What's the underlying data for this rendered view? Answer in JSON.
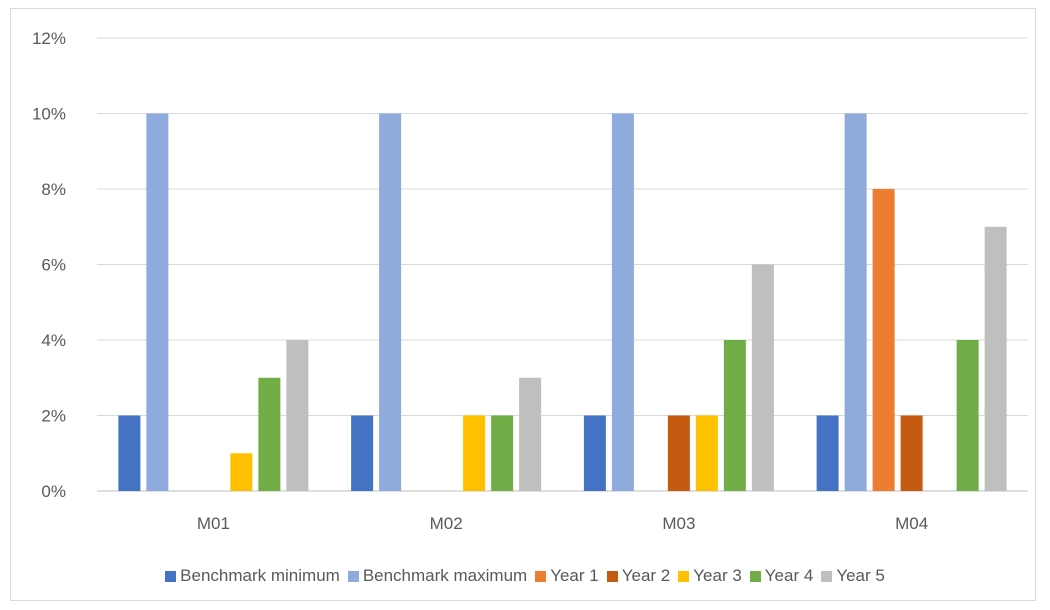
{
  "chart_data": {
    "type": "bar",
    "title": "",
    "xlabel": "",
    "ylabel": "",
    "categories": [
      "M01",
      "M02",
      "M03",
      "M04"
    ],
    "ylim": [
      0,
      12
    ],
    "y_ticks": [
      "0%",
      "2%",
      "4%",
      "6%",
      "8%",
      "10%",
      "12%"
    ],
    "y_unit": "%",
    "grid": true,
    "legend_position": "bottom",
    "series": [
      {
        "name": "Benchmark minimum",
        "color": "#4472c4",
        "values": [
          2,
          2,
          2,
          2
        ]
      },
      {
        "name": "Benchmark maximum",
        "color": "#8faadc",
        "values": [
          10,
          10,
          10,
          10
        ]
      },
      {
        "name": "Year 1",
        "color": "#ed7d31",
        "values": [
          0,
          0,
          0,
          8
        ]
      },
      {
        "name": "Year 2",
        "color": "#c55a11",
        "values": [
          0,
          0,
          2,
          2
        ]
      },
      {
        "name": "Year 3",
        "color": "#ffc000",
        "values": [
          1,
          2,
          2,
          0
        ]
      },
      {
        "name": "Year 4",
        "color": "#70ad47",
        "values": [
          3,
          2,
          4,
          4
        ]
      },
      {
        "name": "Year 5",
        "color": "#bfbfbf",
        "values": [
          4,
          3,
          6,
          7
        ]
      }
    ]
  }
}
